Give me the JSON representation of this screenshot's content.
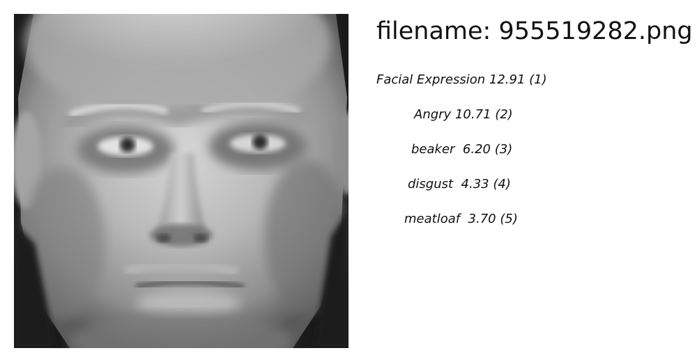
{
  "filename_text": "filename: 955519282.png",
  "predictions": [
    {
      "label": "Facial Expression",
      "score": "12.91",
      "rank": "(1)"
    },
    {
      "label": "Angry",
      "score": "10.71",
      "rank": "(2)"
    },
    {
      "label": "beaker",
      "score": " 6.20",
      "rank": "(3)"
    },
    {
      "label": "disgust",
      "score": " 4.33",
      "rank": "(4)"
    },
    {
      "label": "meatloaf",
      "score": " 3.70",
      "rank": "(5)"
    }
  ],
  "image": {
    "subject": "grayscale close-up photo of a bald man's face"
  }
}
